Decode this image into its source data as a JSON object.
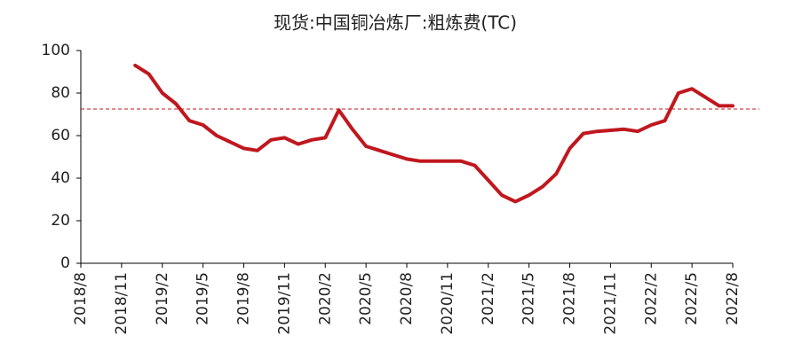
{
  "chart_data": {
    "type": "line",
    "title": "现货:中国铜冶炼厂:粗炼费(TC)",
    "x": [
      "2018/12",
      "2019/1",
      "2019/2",
      "2019/3",
      "2019/4",
      "2019/5",
      "2019/6",
      "2019/7",
      "2019/8",
      "2019/9",
      "2019/10",
      "2019/11",
      "2019/12",
      "2020/1",
      "2020/2",
      "2020/3",
      "2020/4",
      "2020/5",
      "2020/6",
      "2020/7",
      "2020/8",
      "2020/9",
      "2020/10",
      "2020/11",
      "2020/12",
      "2021/1",
      "2021/2",
      "2021/3",
      "2021/4",
      "2021/5",
      "2021/6",
      "2021/7",
      "2021/8",
      "2021/9",
      "2021/10",
      "2021/11",
      "2021/12",
      "2022/1",
      "2022/2",
      "2022/3",
      "2022/4",
      "2022/5",
      "2022/6",
      "2022/7",
      "2022/8"
    ],
    "series": [
      {
        "color": "#c0171e",
        "values": [
          93,
          89,
          80,
          75,
          67,
          65,
          60,
          57,
          54,
          53,
          58,
          59,
          56,
          58,
          59,
          72,
          63,
          55,
          53,
          51,
          49,
          48,
          48,
          48,
          48,
          46,
          39,
          32,
          29,
          32,
          36,
          42,
          54,
          61,
          62,
          62.5,
          63,
          62,
          65,
          67,
          80,
          82,
          78,
          74,
          74
        ]
      }
    ],
    "reference_line": {
      "value": 72.5,
      "color": "#c0171e"
    },
    "xlim": [
      "2018/8",
      "2022/8"
    ],
    "xticks": [
      "2018/8",
      "2018/11",
      "2019/2",
      "2019/5",
      "2019/8",
      "2019/11",
      "2020/2",
      "2020/5",
      "2020/8",
      "2020/11",
      "2021/2",
      "2021/5",
      "2021/8",
      "2021/11",
      "2022/2",
      "2022/5",
      "2022/8"
    ],
    "ylim": [
      0,
      100
    ],
    "yticks": [
      0,
      20,
      40,
      60,
      80,
      100
    ],
    "grid": false
  }
}
